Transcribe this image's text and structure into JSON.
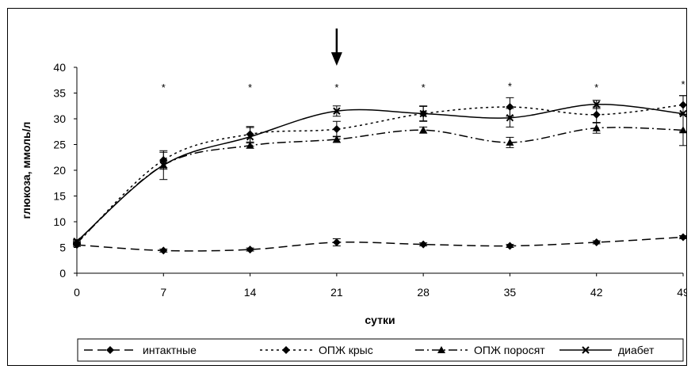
{
  "chart_data": {
    "type": "line",
    "xlabel": "сутки",
    "ylabel": "глюкоза, ммоль/л",
    "x": [
      0,
      7,
      14,
      21,
      28,
      35,
      42,
      49
    ],
    "xlim": [
      0,
      49
    ],
    "ylim": [
      0,
      40
    ],
    "yticks": [
      0,
      5,
      10,
      15,
      20,
      25,
      30,
      35,
      40
    ],
    "grid": false,
    "legend_position": "bottom",
    "marker_arrow_x": 21,
    "significance_marks": [
      {
        "x": 7,
        "label": "*"
      },
      {
        "x": 14,
        "label": "*"
      },
      {
        "x": 21,
        "label": "*"
      },
      {
        "x": 28,
        "label": "*"
      },
      {
        "x": 35,
        "label": "*"
      },
      {
        "x": 42,
        "label": "*"
      },
      {
        "x": 49,
        "label": "*"
      }
    ],
    "series": [
      {
        "name": "интактные",
        "style": "dashed",
        "marker": "diamond",
        "values": [
          5.5,
          4.4,
          4.6,
          6.0,
          5.6,
          5.3,
          6.0,
          7.0
        ],
        "errors": [
          0.3,
          0.3,
          0.3,
          0.7,
          0.3,
          0.3,
          0.3,
          0.3
        ]
      },
      {
        "name": "ОПЖ крыс",
        "style": "dotted",
        "marker": "diamond",
        "values": [
          5.8,
          22.0,
          27.0,
          28.0,
          31.0,
          32.3,
          30.8,
          32.7
        ],
        "errors": [
          0.3,
          1.5,
          1.5,
          1.5,
          1.5,
          1.8,
          1.5,
          1.8
        ]
      },
      {
        "name": "ОПЖ поросят",
        "style": "dashdot",
        "marker": "triangle",
        "values": [
          6.0,
          21.0,
          24.8,
          26.0,
          27.8,
          25.4,
          28.2,
          27.8
        ],
        "errors": [
          0.3,
          0.8,
          0.5,
          0.6,
          0.6,
          1.0,
          1.0,
          3.0
        ]
      },
      {
        "name": "диабет",
        "style": "solid",
        "marker": "cross",
        "values": [
          6.2,
          21.0,
          26.5,
          31.5,
          31.0,
          30.2,
          32.8,
          31.0
        ],
        "errors": [
          0.3,
          2.8,
          1.8,
          1.0,
          1.4,
          1.8,
          0.8,
          3.5
        ]
      }
    ]
  }
}
